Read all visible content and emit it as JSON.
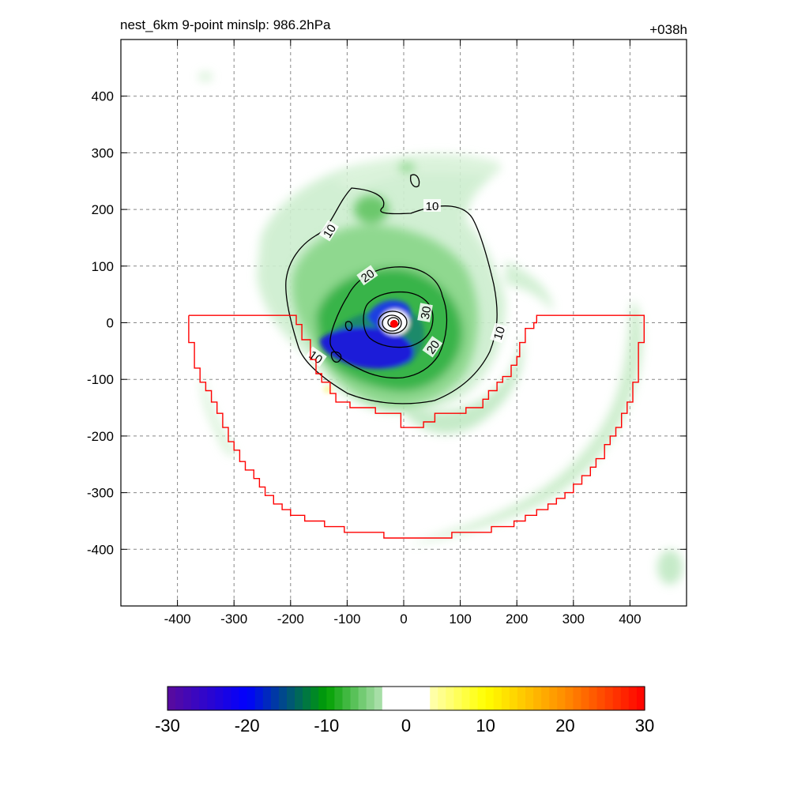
{
  "chart_data": {
    "type": "heatmap",
    "title_left": "nest_6km  9-point minslp: 986.2hPa",
    "title_right": "+038h",
    "x_ticks": [
      -400,
      -300,
      -200,
      -100,
      0,
      100,
      200,
      300,
      400
    ],
    "y_ticks": [
      400,
      300,
      200,
      100,
      0,
      -100,
      -200,
      -300,
      -400
    ],
    "xlim": [
      -500,
      500
    ],
    "ylim": [
      -500,
      500
    ],
    "grid": true,
    "colorbar": {
      "ticks": [
        -30,
        -20,
        -10,
        0,
        10,
        20,
        30
      ],
      "range": [
        -30,
        30
      ],
      "colors": [
        "#5a0a9c",
        "#0000ff",
        "#00a000",
        "#ffffff",
        "#ffff00",
        "#ff8c00",
        "#ff0000"
      ]
    },
    "contour_labels": [
      "10",
      "10",
      "10",
      "10",
      "20",
      "20",
      "30"
    ],
    "contour_levels": [
      10,
      20,
      30
    ],
    "center_marker": {
      "x": -17,
      "y": -2,
      "color": "#ff0000"
    },
    "boundary_color": "#ff0000",
    "boundary": [
      [
        -380,
        13
      ],
      [
        -190,
        13
      ],
      [
        -190,
        -3
      ],
      [
        -180,
        -3
      ],
      [
        -180,
        -30
      ],
      [
        -165,
        -30
      ],
      [
        -165,
        -65
      ],
      [
        -155,
        -65
      ],
      [
        -155,
        -90
      ],
      [
        -145,
        -90
      ],
      [
        -145,
        -105
      ],
      [
        -130,
        -105
      ],
      [
        -130,
        -125
      ],
      [
        -120,
        -125
      ],
      [
        -120,
        -140
      ],
      [
        -95,
        -140
      ],
      [
        -95,
        -150
      ],
      [
        -50,
        -150
      ],
      [
        -50,
        -160
      ],
      [
        -5,
        -160
      ],
      [
        -5,
        -185
      ],
      [
        35,
        -185
      ],
      [
        35,
        -175
      ],
      [
        55,
        -175
      ],
      [
        55,
        -160
      ],
      [
        110,
        -160
      ],
      [
        110,
        -150
      ],
      [
        140,
        -150
      ],
      [
        140,
        -135
      ],
      [
        150,
        -135
      ],
      [
        150,
        -120
      ],
      [
        165,
        -120
      ],
      [
        165,
        -105
      ],
      [
        175,
        -105
      ],
      [
        175,
        -95
      ],
      [
        190,
        -95
      ],
      [
        190,
        -75
      ],
      [
        200,
        -75
      ],
      [
        200,
        -60
      ],
      [
        205,
        -60
      ],
      [
        205,
        -35
      ],
      [
        215,
        -35
      ],
      [
        215,
        -10
      ],
      [
        230,
        -10
      ],
      [
        230,
        0
      ],
      [
        235,
        0
      ],
      [
        235,
        13
      ],
      [
        425,
        13
      ],
      [
        425,
        -35
      ],
      [
        415,
        -35
      ],
      [
        415,
        -105
      ],
      [
        405,
        -105
      ],
      [
        405,
        -140
      ],
      [
        395,
        -140
      ],
      [
        395,
        -160
      ],
      [
        385,
        -160
      ],
      [
        385,
        -185
      ],
      [
        375,
        -185
      ],
      [
        375,
        -200
      ],
      [
        365,
        -200
      ],
      [
        365,
        -215
      ],
      [
        355,
        -215
      ],
      [
        355,
        -240
      ],
      [
        340,
        -240
      ],
      [
        340,
        -255
      ],
      [
        330,
        -255
      ],
      [
        330,
        -270
      ],
      [
        315,
        -270
      ],
      [
        315,
        -285
      ],
      [
        300,
        -285
      ],
      [
        300,
        -300
      ],
      [
        285,
        -300
      ],
      [
        285,
        -310
      ],
      [
        270,
        -310
      ],
      [
        270,
        -320
      ],
      [
        255,
        -320
      ],
      [
        255,
        -330
      ],
      [
        235,
        -330
      ],
      [
        235,
        -340
      ],
      [
        215,
        -340
      ],
      [
        215,
        -350
      ],
      [
        195,
        -350
      ],
      [
        195,
        -360
      ],
      [
        155,
        -360
      ],
      [
        155,
        -370
      ],
      [
        85,
        -370
      ],
      [
        85,
        -380
      ],
      [
        -35,
        -380
      ],
      [
        -35,
        -370
      ],
      [
        -105,
        -370
      ],
      [
        -105,
        -360
      ],
      [
        -140,
        -360
      ],
      [
        -140,
        -350
      ],
      [
        -175,
        -350
      ],
      [
        -175,
        -340
      ],
      [
        -200,
        -340
      ],
      [
        -200,
        -330
      ],
      [
        -215,
        -330
      ],
      [
        -215,
        -320
      ],
      [
        -230,
        -320
      ],
      [
        -230,
        -305
      ],
      [
        -245,
        -305
      ],
      [
        -245,
        -290
      ],
      [
        -255,
        -290
      ],
      [
        -255,
        -275
      ],
      [
        -265,
        -275
      ],
      [
        -265,
        -260
      ],
      [
        -280,
        -260
      ],
      [
        -280,
        -245
      ],
      [
        -290,
        -245
      ],
      [
        -290,
        -225
      ],
      [
        -300,
        -225
      ],
      [
        -300,
        -210
      ],
      [
        -310,
        -210
      ],
      [
        -310,
        -185
      ],
      [
        -320,
        -185
      ],
      [
        -320,
        -160
      ],
      [
        -330,
        -160
      ],
      [
        -330,
        -140
      ],
      [
        -340,
        -140
      ],
      [
        -340,
        -120
      ],
      [
        -350,
        -120
      ],
      [
        -350,
        -105
      ],
      [
        -360,
        -105
      ],
      [
        -360,
        -80
      ],
      [
        -370,
        -80
      ],
      [
        -370,
        -35
      ],
      [
        -380,
        -35
      ],
      [
        -380,
        13
      ]
    ]
  }
}
